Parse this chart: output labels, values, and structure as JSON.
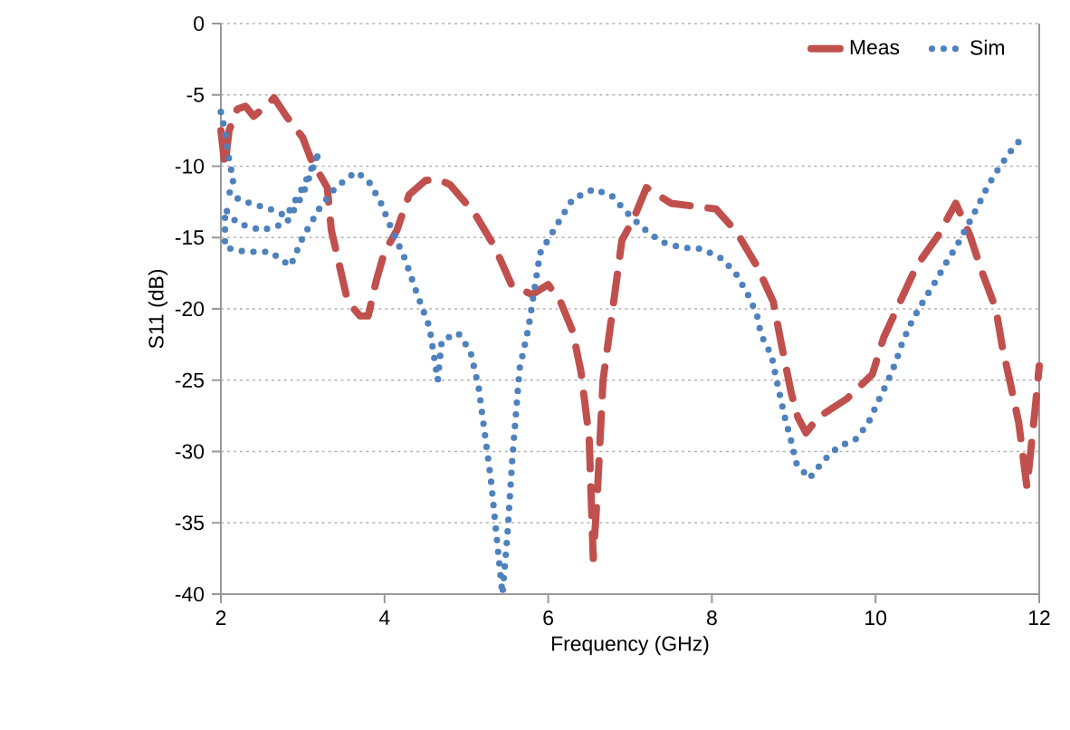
{
  "chart_data": {
    "type": "line",
    "xlabel": "Frequency (GHz)",
    "ylabel": "S11 (dB)",
    "xlim": [
      2,
      12
    ],
    "ylim": [
      -40,
      0
    ],
    "xticks": [
      2,
      4,
      6,
      8,
      10,
      12
    ],
    "yticks": [
      0,
      -5,
      -10,
      -15,
      -20,
      -25,
      -30,
      -35,
      -40
    ],
    "grid": "y",
    "legend": "top right",
    "series": [
      {
        "name": "Meas",
        "color": "#c0504d",
        "line_style": "dashed",
        "x": [
          2.0,
          2.05,
          2.1,
          2.2,
          2.3,
          2.4,
          2.55,
          2.65,
          2.8,
          3.0,
          3.1,
          3.3,
          3.35,
          3.45,
          3.55,
          3.7,
          3.8,
          3.9,
          4.0,
          4.15,
          4.3,
          4.5,
          4.65,
          4.8,
          5.1,
          5.35,
          5.55,
          5.8,
          6.0,
          6.15,
          6.3,
          6.4,
          6.5,
          6.55,
          6.6,
          6.67,
          6.8,
          6.9,
          7.05,
          7.2,
          7.5,
          8.05,
          8.3,
          8.55,
          8.75,
          8.85,
          8.97,
          9.05,
          9.15,
          9.3,
          9.65,
          9.96,
          10.1,
          10.3,
          10.5,
          10.76,
          10.98,
          11.15,
          11.3,
          11.47,
          11.55,
          11.65,
          11.75,
          11.85,
          11.95,
          12.0
        ],
        "values": [
          -7.5,
          -10,
          -7.5,
          -6,
          -5.8,
          -6.5,
          -5.8,
          -5.2,
          -6.5,
          -8,
          -9.5,
          -11.5,
          -14.5,
          -17,
          -19.5,
          -20.5,
          -20.5,
          -18,
          -16,
          -14.5,
          -12,
          -11,
          -10.9,
          -11.3,
          -13.3,
          -15.7,
          -18.3,
          -19,
          -18.3,
          -19.5,
          -21.6,
          -24.4,
          -29,
          -37.5,
          -33,
          -25,
          -19.5,
          -15.2,
          -13.6,
          -11.5,
          -12.6,
          -13,
          -14.6,
          -17,
          -19.5,
          -22.5,
          -25.9,
          -27.6,
          -28.7,
          -27.6,
          -26.3,
          -24.6,
          -22,
          -19.5,
          -17,
          -14.9,
          -12.6,
          -14.8,
          -17.4,
          -20,
          -22.7,
          -25.3,
          -28,
          -32.5,
          -27,
          -24
        ]
      },
      {
        "name": "Sim",
        "color": "#4f81bd",
        "line_style": "dotted",
        "x": [
          2.0,
          2.05,
          2.1,
          2.15,
          2.1,
          2.3,
          2.6,
          2.8,
          3.0,
          3.2,
          3.1,
          3.0,
          2.8,
          2.5,
          2.2,
          2.05,
          2.05,
          2.3,
          2.6,
          2.85,
          3.0,
          3.2,
          3.4,
          3.65,
          3.8,
          3.95,
          4.1,
          4.25,
          4.4,
          4.55,
          4.65,
          4.7,
          4.9,
          5.05,
          5.15,
          5.3,
          5.44,
          5.5,
          5.56,
          5.65,
          5.76,
          5.9,
          6.16,
          6.3,
          6.56,
          6.78,
          6.97,
          7.15,
          7.38,
          7.62,
          7.88,
          8.13,
          8.3,
          8.44,
          8.55,
          8.6,
          8.73,
          8.78,
          8.84,
          8.9,
          8.97,
          9.03,
          9.19,
          9.37,
          9.54,
          9.77,
          9.92,
          10.03,
          10.14,
          10.25,
          10.33,
          10.45,
          10.58,
          10.72,
          10.86,
          11.0,
          11.13,
          11.25,
          11.37,
          11.51,
          11.67,
          11.84
        ],
        "values": [
          -6.2,
          -7.5,
          -9.5,
          -11,
          -12,
          -12.5,
          -13,
          -13.5,
          -11.5,
          -9,
          -10.5,
          -12,
          -14,
          -14.5,
          -14,
          -13,
          -15.7,
          -16,
          -16,
          -17,
          -15,
          -13,
          -11.5,
          -10.4,
          -11,
          -12.5,
          -14.6,
          -16.5,
          -19,
          -21.3,
          -25,
          -22.2,
          -21.7,
          -23,
          -25.5,
          -32,
          -40,
          -36,
          -30.6,
          -24.2,
          -21.3,
          -16.1,
          -13.6,
          -12.3,
          -11.6,
          -12.1,
          -13.3,
          -14.3,
          -15.3,
          -15.7,
          -15.8,
          -16.5,
          -17.6,
          -19,
          -20.4,
          -21.8,
          -23.3,
          -24.7,
          -26.3,
          -27.8,
          -29.3,
          -30.8,
          -31.9,
          -30.6,
          -29.7,
          -29.1,
          -27.9,
          -26.5,
          -25.2,
          -23.7,
          -22.3,
          -20.8,
          -19.5,
          -18.2,
          -16.8,
          -15.5,
          -14.1,
          -12.8,
          -11.4,
          -10.1,
          -8.8,
          -7.7
        ]
      }
    ]
  }
}
